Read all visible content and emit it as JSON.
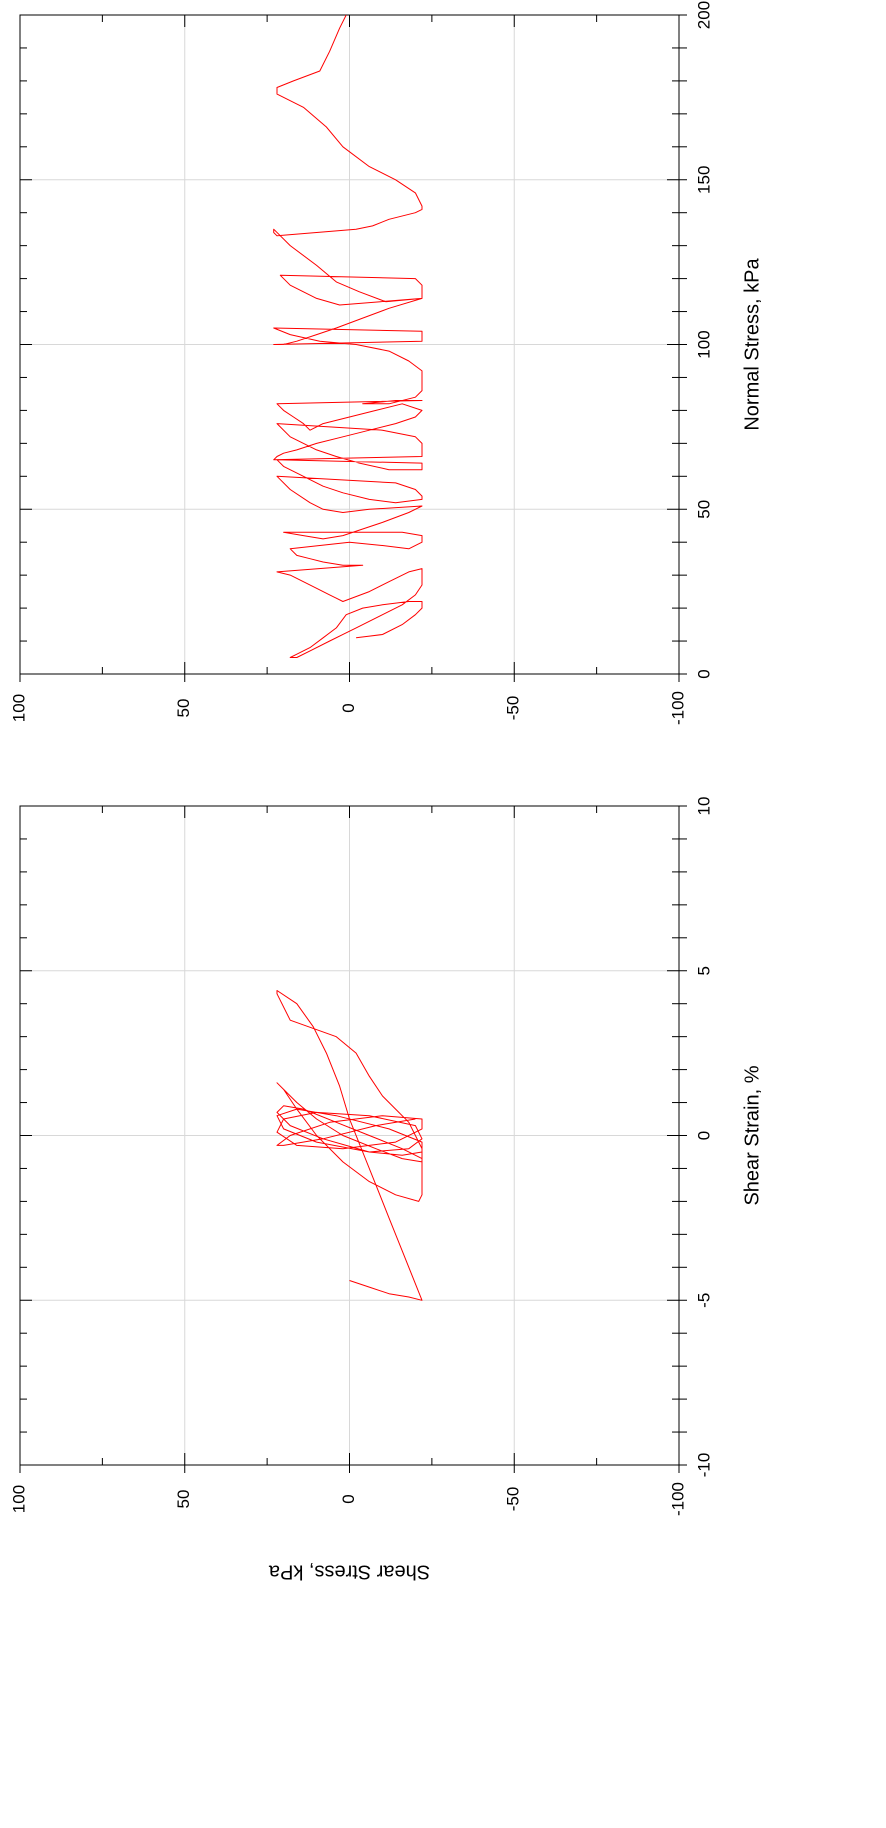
{
  "chart_data": [
    {
      "type": "line",
      "orientation": "rotated 90 degrees clockwise",
      "xlabel": "Normal Stress, kPa",
      "ylabel": "",
      "xlim": [
        0,
        200
      ],
      "ylim": [
        -100,
        100
      ],
      "x_ticks": [
        "0",
        "50",
        "100",
        "150",
        "200"
      ],
      "y_ticks": [
        "100",
        "50",
        "0",
        "-50",
        "-100"
      ],
      "grid": true,
      "line_color": "#ff0000",
      "series": [
        {
          "x": [
            200,
            196,
            189,
            183,
            180,
            178,
            176,
            172,
            166,
            160,
            154,
            150,
            146,
            142,
            141,
            140,
            138,
            136,
            135,
            134,
            133,
            134,
            135,
            130,
            124,
            119,
            116,
            113,
            114,
            116,
            118,
            120,
            121,
            118,
            114,
            112,
            114,
            111,
            108,
            105,
            103,
            101,
            100,
            100,
            101,
            102,
            103,
            104,
            105,
            103,
            101,
            100,
            98,
            95,
            92,
            89,
            86,
            84,
            82,
            82,
            83,
            83,
            82,
            80,
            78,
            76,
            74,
            76,
            78,
            80,
            82,
            80,
            78,
            76,
            74,
            72,
            70,
            68,
            67,
            66,
            65,
            66,
            68,
            70,
            72,
            74,
            76,
            72,
            68,
            66,
            64,
            62,
            62,
            63,
            64,
            65,
            63,
            60,
            57,
            55,
            53,
            52,
            53,
            54,
            56,
            58,
            60,
            56,
            52,
            50,
            49,
            50,
            51,
            49,
            46,
            44,
            42,
            41,
            42,
            43,
            43,
            42,
            40,
            38,
            39,
            40,
            38,
            36,
            35,
            34,
            33,
            33,
            31,
            30,
            28,
            26,
            24,
            23,
            22,
            25,
            28,
            31,
            32,
            30,
            27,
            24,
            21,
            18,
            14,
            10,
            7,
            5,
            5,
            6,
            8,
            11,
            14,
            18,
            20,
            21,
            22,
            22,
            20,
            18,
            15,
            12,
            11
          ],
          "y": [
            1,
            3,
            6,
            9,
            17,
            22,
            22,
            14,
            7,
            2,
            -6,
            -14,
            -20,
            -22,
            -22,
            -20,
            -12,
            -7,
            -2,
            10,
            22,
            23,
            23,
            18,
            10,
            4,
            -3,
            -11,
            -22,
            -22,
            -22,
            -20,
            21,
            18,
            10,
            3,
            -22,
            -12,
            -4,
            4,
            10,
            16,
            20,
            23,
            -22,
            -22,
            -22,
            -22,
            23,
            18,
            9,
            -2,
            -12,
            -18,
            -22,
            -22,
            -22,
            -20,
            -12,
            -4,
            -14,
            -22,
            22,
            20,
            17,
            14,
            12,
            8,
            0,
            -8,
            -16,
            -22,
            -20,
            -14,
            -6,
            2,
            10,
            16,
            20,
            22,
            23,
            -22,
            -22,
            -22,
            -20,
            -10,
            22,
            18,
            10,
            4,
            -3,
            -12,
            -22,
            -22,
            -22,
            22,
            20,
            14,
            8,
            2,
            -6,
            -14,
            -22,
            -22,
            -20,
            -14,
            22,
            18,
            12,
            8,
            2,
            -6,
            -22,
            -18,
            -10,
            -4,
            2,
            8,
            14,
            20,
            -16,
            -22,
            -22,
            -18,
            -10,
            0,
            18,
            16,
            12,
            8,
            2,
            -4,
            22,
            18,
            14,
            10,
            6,
            4,
            2,
            -6,
            -12,
            -18,
            -22,
            -22,
            -22,
            -20,
            -16,
            -10,
            -2,
            6,
            12,
            16,
            18,
            16,
            12,
            8,
            4,
            1,
            -4,
            -10,
            -18,
            -22,
            -22,
            -20,
            -16,
            -10,
            -2
          ]
        }
      ]
    },
    {
      "type": "line",
      "orientation": "rotated 90 degrees clockwise",
      "xlabel": "Shear Strain, %",
      "ylabel": "Shear Stress, kPa",
      "xlim": [
        -10,
        10
      ],
      "ylim": [
        -100,
        100
      ],
      "x_ticks": [
        "-10",
        "-5",
        "0",
        "5",
        "10"
      ],
      "y_ticks": [
        "100",
        "50",
        "0",
        "-50",
        "-100"
      ],
      "grid": true,
      "line_color": "#ff0000",
      "series": [
        {
          "x": [
            -4.4,
            -4.6,
            -4.8,
            -4.9,
            -5.0,
            -4.5,
            -3.5,
            -2.5,
            -1.5,
            -0.5,
            0.5,
            1.5,
            2.5,
            3.3,
            4.0,
            4.4,
            4.3,
            3.5,
            3.0,
            2.5,
            1.8,
            1.2,
            0.8,
            0.4,
            0.0,
            -0.4,
            -0.8,
            -1.2,
            -1.8,
            -2.0,
            -1.8,
            -1.4,
            -0.8,
            0.0,
            0.8,
            1.4,
            1.6,
            1.4,
            1.0,
            0.5,
            0.0,
            -0.4,
            -0.7,
            -0.8,
            -0.7,
            -0.4,
            0.0,
            0.4,
            0.8,
            0.9,
            0.7,
            0.3,
            -0.1,
            -0.5,
            -0.6,
            -0.5,
            -0.2,
            0.2,
            0.6,
            0.8,
            0.6,
            0.2,
            -0.2,
            -0.5,
            -0.4,
            -0.1,
            0.3,
            0.6,
            0.7,
            0.5,
            0.1,
            -0.3,
            -0.4,
            -0.2,
            0.2,
            0.5,
            0.6,
            0.4,
            0.0,
            -0.3,
            -0.3,
            -0.1,
            0.3,
            0.5
          ],
          "y": [
            0,
            -6,
            -12,
            -18,
            -22,
            -20,
            -16,
            -12,
            -8,
            -4,
            0,
            3,
            7,
            11,
            16,
            22,
            22,
            18,
            4,
            -2,
            -6,
            -10,
            -14,
            -18,
            -20,
            -22,
            -22,
            -22,
            -22,
            -21,
            -14,
            -6,
            2,
            10,
            16,
            20,
            22,
            20,
            16,
            10,
            2,
            -8,
            -16,
            -22,
            -22,
            -16,
            -6,
            4,
            14,
            20,
            22,
            18,
            8,
            -6,
            -16,
            -22,
            -22,
            -12,
            4,
            16,
            22,
            20,
            10,
            -6,
            -18,
            -22,
            -20,
            -6,
            10,
            20,
            22,
            16,
            2,
            -14,
            -22,
            -22,
            -10,
            6,
            18,
            22,
            20,
            8,
            -8,
            -20
          ]
        }
      ]
    }
  ]
}
